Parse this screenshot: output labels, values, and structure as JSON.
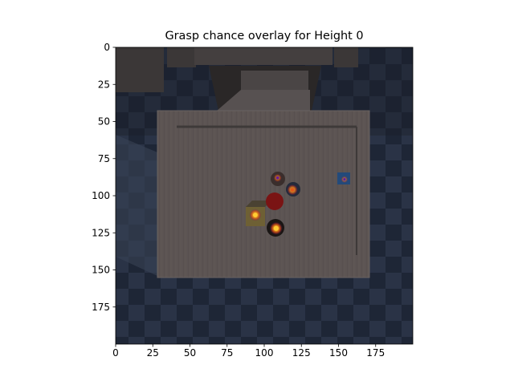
{
  "chart_data": {
    "type": "heatmap",
    "title": "Grasp chance overlay for Height 0",
    "xlabel": "",
    "ylabel": "",
    "xlim": [
      0,
      200
    ],
    "ylim": [
      200,
      0
    ],
    "x_ticks": [
      0,
      25,
      50,
      75,
      100,
      125,
      150,
      175
    ],
    "y_ticks": [
      0,
      25,
      50,
      75,
      100,
      125,
      150,
      175
    ],
    "x_tick_labels": [
      "0",
      "25",
      "50",
      "75",
      "100",
      "125",
      "150",
      "175"
    ],
    "y_tick_labels": [
      "0",
      "25",
      "50",
      "75",
      "100",
      "125",
      "150",
      "175"
    ],
    "grid": false,
    "background_image": "top-down-camera-view-of-table-with-objects",
    "grasp_hotspots": [
      {
        "x": 108,
        "y": 122,
        "intensity": 1.0
      },
      {
        "x": 94,
        "y": 113,
        "intensity": 0.9
      },
      {
        "x": 119,
        "y": 96,
        "intensity": 0.75
      },
      {
        "x": 109,
        "y": 88,
        "intensity": 0.45
      },
      {
        "x": 154,
        "y": 89,
        "intensity": 0.3
      }
    ],
    "colors": {
      "hot": "#ffcc33",
      "warm": "#e05a1a",
      "cool": "#6a1a9a"
    }
  }
}
